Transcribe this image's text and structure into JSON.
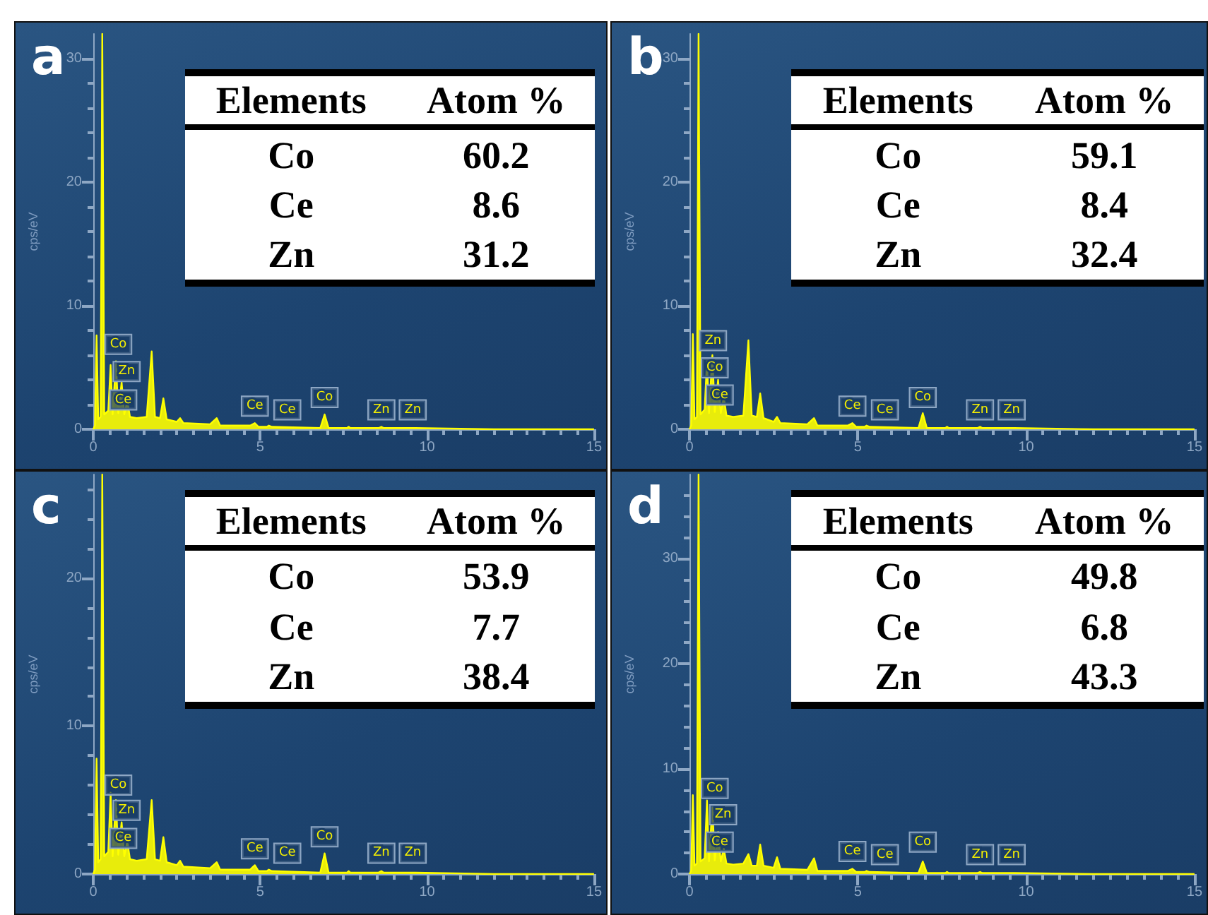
{
  "chart_data": [
    {
      "type": "area",
      "title": "a",
      "ylabel": "cps/eV",
      "xlim": [
        0,
        15
      ],
      "xticks": [
        0,
        5,
        10,
        15
      ],
      "ylim": [
        0,
        32
      ],
      "yticks": [
        0,
        10,
        20,
        30
      ],
      "color": "#ffff00",
      "x": [
        0,
        0.05,
        0.1,
        0.15,
        0.22,
        0.27,
        0.33,
        0.45,
        0.52,
        0.58,
        0.68,
        0.75,
        0.85,
        0.93,
        1.02,
        1.1,
        1.3,
        1.6,
        1.75,
        1.85,
        2.0,
        2.1,
        2.2,
        2.5,
        2.6,
        2.7,
        3.5,
        3.7,
        3.8,
        4.7,
        4.84,
        4.95,
        5.2,
        5.26,
        5.35,
        6.8,
        6.93,
        7.05,
        7.6,
        7.65,
        7.7,
        8.55,
        8.63,
        8.7,
        9.5,
        9.57,
        9.65,
        12,
        15
      ],
      "values": [
        0,
        0.3,
        7.6,
        0.8,
        1,
        32,
        1.2,
        1.5,
        5.2,
        1.2,
        5.5,
        1.3,
        3.8,
        1.2,
        2.3,
        1,
        0.9,
        1,
        6.3,
        1,
        0.9,
        2.5,
        0.8,
        0.6,
        0.9,
        0.5,
        0.4,
        0.9,
        0.3,
        0.3,
        0.5,
        0.2,
        0.2,
        0.3,
        0.2,
        0.1,
        1.2,
        0.1,
        0.1,
        0.2,
        0.1,
        0.1,
        0.2,
        0.1,
        0.1,
        0.1,
        0.1,
        0,
        0
      ],
      "annotations": [
        {
          "text": "Co",
          "x": 0.75,
          "y": 5.9
        },
        {
          "text": "Zn",
          "x": 1.0,
          "y": 3.7
        },
        {
          "text": "Ce",
          "x": 0.9,
          "y": 1.4
        },
        {
          "text": "Ce",
          "x": 4.84,
          "y": 0.9
        },
        {
          "text": "Ce",
          "x": 5.26,
          "y": 0.6
        },
        {
          "text": "Co",
          "x": 6.93,
          "y": 1.6
        },
        {
          "text": "Zn",
          "x": 8.63,
          "y": 0.6
        },
        {
          "text": "Zn",
          "x": 9.57,
          "y": 0.6
        }
      ]
    },
    {
      "type": "other",
      "xlabel": "Elements",
      "ylabel": "Atom %",
      "categories": [
        "Co",
        "Ce",
        "Zn"
      ],
      "values": [
        60.2,
        8.6,
        31.2
      ],
      "data_labels": true
    },
    {
      "type": "area",
      "title": "b",
      "ylabel": "cps/eV",
      "xlim": [
        0,
        15
      ],
      "xticks": [
        0,
        5,
        10,
        15
      ],
      "ylim": [
        0,
        32
      ],
      "yticks": [
        0,
        10,
        20,
        30
      ],
      "color": "#ffff00",
      "x": [
        0,
        0.05,
        0.1,
        0.15,
        0.22,
        0.27,
        0.33,
        0.45,
        0.52,
        0.58,
        0.68,
        0.75,
        0.85,
        0.93,
        1.02,
        1.1,
        1.3,
        1.6,
        1.75,
        1.85,
        2.0,
        2.1,
        2.2,
        2.5,
        2.6,
        2.7,
        3.5,
        3.7,
        3.8,
        4.7,
        4.84,
        4.95,
        5.2,
        5.26,
        5.35,
        6.8,
        6.93,
        7.05,
        7.6,
        7.65,
        7.7,
        8.55,
        8.63,
        8.7,
        9.5,
        9.57,
        9.65,
        12,
        15
      ],
      "values": [
        0,
        0.3,
        7.7,
        0.8,
        1,
        32,
        1.2,
        1.6,
        5.5,
        1.3,
        6,
        1.4,
        4,
        1.3,
        2.6,
        1.1,
        1,
        1.1,
        7.2,
        1.1,
        1,
        2.9,
        0.9,
        0.6,
        1,
        0.5,
        0.4,
        0.9,
        0.3,
        0.3,
        0.5,
        0.2,
        0.2,
        0.3,
        0.2,
        0.1,
        1.3,
        0.1,
        0.1,
        0.2,
        0.1,
        0.1,
        0.2,
        0.1,
        0.1,
        0.1,
        0.1,
        0,
        0
      ],
      "annotations": [
        {
          "text": "Zn",
          "x": 0.7,
          "y": 6.2
        },
        {
          "text": "Co",
          "x": 0.75,
          "y": 4.0
        },
        {
          "text": "Ce",
          "x": 0.9,
          "y": 1.8
        },
        {
          "text": "Ce",
          "x": 4.84,
          "y": 0.9
        },
        {
          "text": "Ce",
          "x": 5.26,
          "y": 0.6
        },
        {
          "text": "Co",
          "x": 6.93,
          "y": 1.6
        },
        {
          "text": "Zn",
          "x": 8.63,
          "y": 0.6
        },
        {
          "text": "Zn",
          "x": 9.57,
          "y": 0.6
        }
      ]
    },
    {
      "type": "other",
      "xlabel": "Elements",
      "ylabel": "Atom %",
      "categories": [
        "Co",
        "Ce",
        "Zn"
      ],
      "values": [
        59.1,
        8.4,
        32.4
      ],
      "data_labels": true
    },
    {
      "type": "area",
      "title": "c",
      "ylabel": "cps/eV",
      "xlim": [
        0,
        15
      ],
      "xticks": [
        0,
        5,
        10,
        15
      ],
      "ylim": [
        0,
        27
      ],
      "yticks": [
        0,
        10,
        20
      ],
      "color": "#ffff00",
      "x": [
        0,
        0.05,
        0.1,
        0.15,
        0.22,
        0.27,
        0.33,
        0.45,
        0.52,
        0.58,
        0.68,
        0.75,
        0.85,
        0.93,
        1.02,
        1.1,
        1.3,
        1.6,
        1.75,
        1.85,
        2.0,
        2.1,
        2.2,
        2.5,
        2.6,
        2.7,
        3.5,
        3.7,
        3.8,
        4.7,
        4.84,
        4.95,
        5.2,
        5.26,
        5.35,
        6.8,
        6.93,
        7.05,
        7.6,
        7.65,
        7.7,
        8.55,
        8.63,
        8.7,
        9.5,
        9.57,
        9.65,
        12,
        15
      ],
      "values": [
        0,
        0.3,
        7.8,
        0.8,
        1,
        27,
        1.2,
        1.5,
        5.5,
        1.2,
        5,
        1.3,
        3.5,
        1.2,
        2.2,
        1,
        0.9,
        1,
        5,
        1,
        0.9,
        2.5,
        0.8,
        0.6,
        0.9,
        0.5,
        0.4,
        0.8,
        0.3,
        0.3,
        0.6,
        0.2,
        0.2,
        0.3,
        0.2,
        0.1,
        1.4,
        0.1,
        0.1,
        0.2,
        0.1,
        0.1,
        0.2,
        0.1,
        0.1,
        0.1,
        0.1,
        0,
        0
      ],
      "annotations": [
        {
          "text": "Co",
          "x": 0.75,
          "y": 5.2
        },
        {
          "text": "Zn",
          "x": 1.0,
          "y": 3.5
        },
        {
          "text": "Ce",
          "x": 0.9,
          "y": 1.6
        },
        {
          "text": "Ce",
          "x": 4.84,
          "y": 0.9
        },
        {
          "text": "Ce",
          "x": 5.26,
          "y": 0.6
        },
        {
          "text": "Co",
          "x": 6.93,
          "y": 1.7
        },
        {
          "text": "Zn",
          "x": 8.63,
          "y": 0.6
        },
        {
          "text": "Zn",
          "x": 9.57,
          "y": 0.6
        }
      ]
    },
    {
      "type": "other",
      "xlabel": "Elements",
      "ylabel": "Atom %",
      "categories": [
        "Co",
        "Ce",
        "Zn"
      ],
      "values": [
        53.9,
        7.7,
        38.4
      ],
      "data_labels": true
    },
    {
      "type": "area",
      "title": "d",
      "ylabel": "cps/eV",
      "xlim": [
        0,
        15
      ],
      "xticks": [
        0,
        5,
        10,
        15
      ],
      "ylim": [
        0,
        38
      ],
      "yticks": [
        0,
        10,
        20,
        30
      ],
      "color": "#ffff00",
      "x": [
        0,
        0.05,
        0.1,
        0.15,
        0.22,
        0.27,
        0.33,
        0.45,
        0.52,
        0.58,
        0.68,
        0.75,
        0.85,
        0.93,
        1.02,
        1.1,
        1.3,
        1.6,
        1.75,
        1.85,
        2.0,
        2.1,
        2.2,
        2.5,
        2.6,
        2.7,
        3.5,
        3.7,
        3.8,
        4.7,
        4.84,
        4.95,
        5.2,
        5.26,
        5.35,
        6.8,
        6.93,
        7.05,
        7.6,
        7.65,
        7.7,
        8.55,
        8.63,
        8.7,
        9.5,
        9.57,
        9.65,
        12,
        15
      ],
      "values": [
        0,
        0.3,
        7.5,
        0.8,
        1,
        38,
        1.2,
        1.5,
        7,
        1.2,
        6.5,
        1.3,
        4,
        1.2,
        2.4,
        1,
        0.9,
        1,
        1.9,
        0.8,
        0.8,
        2.8,
        0.8,
        0.6,
        1.6,
        0.5,
        0.4,
        1.5,
        0.3,
        0.3,
        0.5,
        0.2,
        0.2,
        0.3,
        0.2,
        0.1,
        1.2,
        0.1,
        0.1,
        0.2,
        0.1,
        0.1,
        0.2,
        0.1,
        0.1,
        0.1,
        0.1,
        0,
        0
      ],
      "annotations": [
        {
          "text": "Co",
          "x": 0.75,
          "y": 7
        },
        {
          "text": "Zn",
          "x": 1.0,
          "y": 4.5
        },
        {
          "text": "Ce",
          "x": 0.9,
          "y": 1.9
        },
        {
          "text": "Ce",
          "x": 4.84,
          "y": 1
        },
        {
          "text": "Ce",
          "x": 5.26,
          "y": 0.7
        },
        {
          "text": "Co",
          "x": 6.93,
          "y": 1.9
        },
        {
          "text": "Zn",
          "x": 8.63,
          "y": 0.7
        },
        {
          "text": "Zn",
          "x": 9.57,
          "y": 0.7
        }
      ]
    },
    {
      "type": "other",
      "xlabel": "Elements",
      "ylabel": "Atom %",
      "categories": [
        "Co",
        "Ce",
        "Zn"
      ],
      "values": [
        49.8,
        6.8,
        43.3
      ],
      "data_labels": true
    }
  ]
}
